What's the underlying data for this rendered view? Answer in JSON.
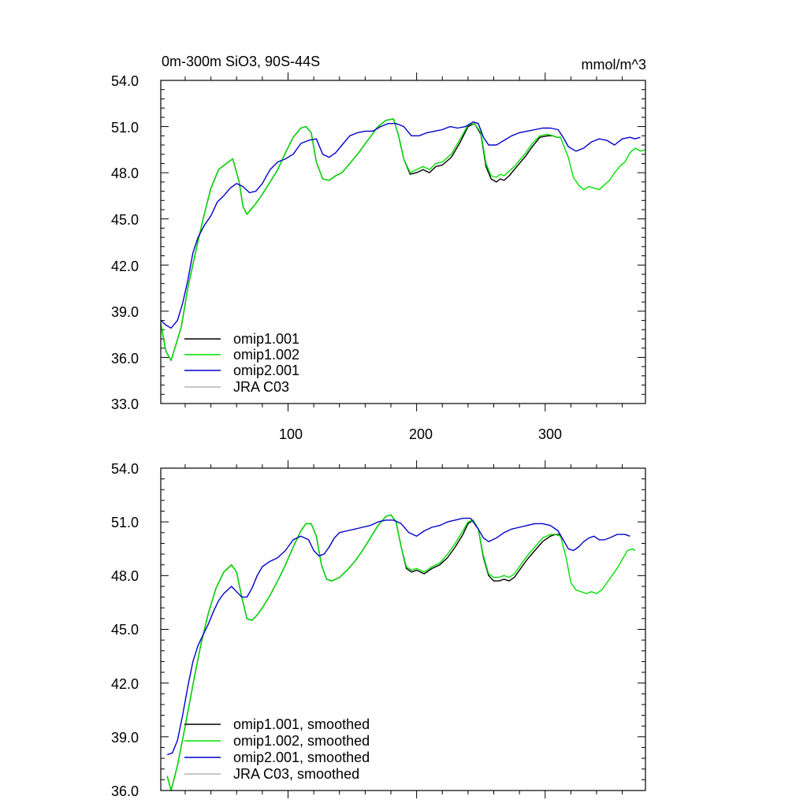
{
  "chart_data": [
    {
      "type": "line",
      "title": "0m-300m SiO3, 90S-44S",
      "units": "mmol/m^3",
      "xlim": [
        1,
        378
      ],
      "ylim": [
        33,
        54
      ],
      "x_ticks": [
        100,
        200,
        300
      ],
      "x_tick_labels": [
        "100",
        "200",
        "300"
      ],
      "y_ticks": [
        33,
        36,
        39,
        42,
        45,
        48,
        51,
        54
      ],
      "y_tick_labels": [
        "33.0",
        "36.0",
        "39.0",
        "42.0",
        "45.0",
        "48.0",
        "51.0",
        "54.0"
      ],
      "legend_position": "bottom-left",
      "series": [
        {
          "name": "omip1.001",
          "color": "#000000",
          "x": [
            1,
            5,
            9,
            12,
            17,
            22,
            28,
            34,
            40,
            46,
            52,
            57,
            62,
            65,
            68,
            71,
            75,
            80,
            86,
            92,
            98,
            104,
            110,
            114,
            118,
            122,
            127,
            132,
            137,
            142,
            148,
            155,
            162,
            170,
            176,
            182,
            186,
            190,
            195,
            200,
            205,
            210,
            215,
            220,
            227,
            234,
            240,
            245,
            250,
            254,
            258,
            262,
            265,
            268,
            272,
            276,
            280,
            285,
            290,
            296,
            302,
            306,
            309,
            312
          ],
          "y": [
            38.2,
            36.4,
            35.8,
            36.6,
            38.0,
            40.5,
            42.8,
            45.0,
            47.0,
            48.2,
            48.6,
            48.9,
            47.4,
            45.8,
            45.3,
            45.6,
            46.0,
            46.6,
            47.4,
            48.2,
            49.3,
            50.3,
            50.9,
            51.0,
            50.6,
            48.7,
            47.6,
            47.5,
            47.8,
            48.0,
            48.6,
            49.3,
            50.1,
            51.0,
            51.4,
            51.5,
            50.4,
            48.9,
            47.9,
            48.0,
            48.2,
            48.0,
            48.4,
            48.5,
            49.0,
            50.0,
            51.0,
            51.2,
            50.5,
            48.4,
            47.6,
            47.4,
            47.6,
            47.5,
            47.8,
            48.2,
            48.6,
            49.1,
            49.7,
            50.3,
            50.4,
            50.4,
            50.3,
            50.3
          ]
        },
        {
          "name": "omip1.002",
          "color": "#00e000",
          "x": [
            1,
            5,
            9,
            12,
            17,
            22,
            28,
            34,
            40,
            46,
            52,
            57,
            62,
            65,
            68,
            71,
            75,
            80,
            86,
            92,
            98,
            104,
            110,
            114,
            118,
            122,
            127,
            132,
            137,
            142,
            148,
            155,
            162,
            170,
            176,
            182,
            186,
            190,
            195,
            200,
            205,
            210,
            215,
            220,
            227,
            234,
            240,
            245,
            250,
            254,
            258,
            262,
            265,
            268,
            272,
            276,
            280,
            285,
            290,
            296,
            302,
            306,
            309,
            312,
            318,
            322,
            326,
            330,
            334,
            338,
            342,
            346,
            350,
            354,
            358,
            362,
            366,
            370,
            374,
            378
          ],
          "y": [
            38.2,
            36.4,
            35.8,
            36.6,
            38.0,
            40.5,
            42.8,
            45.0,
            47.0,
            48.2,
            48.6,
            48.9,
            47.4,
            45.8,
            45.3,
            45.6,
            46.0,
            46.6,
            47.4,
            48.2,
            49.3,
            50.3,
            50.9,
            51.0,
            50.6,
            48.7,
            47.6,
            47.5,
            47.8,
            48.0,
            48.6,
            49.3,
            50.1,
            51.0,
            51.4,
            51.5,
            50.4,
            48.9,
            48.0,
            48.2,
            48.4,
            48.2,
            48.6,
            48.7,
            49.2,
            50.2,
            51.1,
            51.2,
            50.6,
            48.6,
            47.8,
            47.7,
            47.9,
            47.8,
            48.1,
            48.4,
            48.8,
            49.3,
            49.9,
            50.4,
            50.5,
            50.4,
            50.3,
            50.3,
            49.0,
            47.7,
            47.2,
            46.9,
            47.1,
            47.0,
            46.9,
            47.2,
            47.5,
            48.0,
            48.4,
            48.7,
            49.3,
            49.6,
            49.4,
            49.5
          ]
        },
        {
          "name": "omip2.001",
          "color": "#0000cc",
          "x": [
            1,
            5,
            9,
            14,
            18,
            22,
            26,
            30,
            35,
            40,
            45,
            50,
            55,
            60,
            65,
            70,
            75,
            80,
            86,
            92,
            98,
            104,
            110,
            116,
            122,
            127,
            132,
            137,
            142,
            148,
            154,
            160,
            166,
            172,
            178,
            184,
            190,
            196,
            202,
            208,
            214,
            220,
            226,
            232,
            238,
            244,
            248,
            252,
            256,
            262,
            268,
            274,
            280,
            286,
            292,
            298,
            304,
            310,
            314,
            318,
            324,
            330,
            336,
            342,
            348,
            354,
            360,
            366,
            370,
            374
          ],
          "y": [
            38.4,
            38.1,
            37.9,
            38.4,
            39.5,
            41.0,
            42.8,
            43.8,
            44.6,
            45.2,
            46.1,
            46.5,
            47.0,
            47.3,
            47.1,
            46.7,
            46.8,
            47.3,
            48.2,
            48.7,
            48.9,
            49.2,
            49.9,
            50.1,
            50.2,
            49.2,
            49.0,
            49.3,
            49.8,
            50.4,
            50.6,
            50.7,
            50.7,
            51.0,
            51.2,
            51.2,
            51.0,
            50.4,
            50.4,
            50.6,
            50.7,
            50.8,
            51.0,
            50.9,
            51.0,
            51.3,
            51.2,
            50.3,
            49.8,
            49.8,
            50.1,
            50.4,
            50.6,
            50.7,
            50.8,
            50.9,
            50.9,
            50.8,
            50.3,
            49.7,
            49.4,
            49.6,
            50.0,
            50.2,
            50.1,
            49.8,
            50.2,
            50.3,
            50.2,
            50.3
          ]
        },
        {
          "name": "JRA C03",
          "color": "#b4b4b4",
          "x": [],
          "y": []
        }
      ]
    },
    {
      "type": "line",
      "xlim": [
        1,
        378
      ],
      "ylim": [
        36,
        54
      ],
      "x_ticks": [
        100,
        200,
        300
      ],
      "y_ticks": [
        36,
        39,
        42,
        45,
        48,
        51,
        54
      ],
      "y_tick_labels": [
        "36.0",
        "39.0",
        "42.0",
        "45.0",
        "48.0",
        "51.0",
        "54.0"
      ],
      "legend_position": "bottom-left",
      "series": [
        {
          "name": "omip1.001, smoothed",
          "color": "#000000",
          "x": [
            6,
            9,
            14,
            20,
            26,
            32,
            38,
            44,
            50,
            56,
            60,
            64,
            68,
            72,
            76,
            80,
            86,
            92,
            98,
            104,
            110,
            114,
            118,
            122,
            126,
            130,
            134,
            140,
            146,
            152,
            158,
            164,
            170,
            176,
            180,
            184,
            188,
            192,
            196,
            200,
            206,
            212,
            218,
            224,
            230,
            236,
            240,
            244,
            248,
            252,
            256,
            260,
            264,
            268,
            272,
            276,
            280,
            286,
            292,
            298,
            304,
            308,
            312
          ],
          "y": [
            36.8,
            36.0,
            37.4,
            39.6,
            41.9,
            44.1,
            45.9,
            47.3,
            48.2,
            48.6,
            48.2,
            46.8,
            45.6,
            45.5,
            45.8,
            46.2,
            46.9,
            47.7,
            48.6,
            49.6,
            50.5,
            50.9,
            50.9,
            50.2,
            48.6,
            47.8,
            47.7,
            47.9,
            48.3,
            48.8,
            49.4,
            50.1,
            50.8,
            51.3,
            51.4,
            51.0,
            49.6,
            48.4,
            48.2,
            48.3,
            48.1,
            48.4,
            48.6,
            49.0,
            49.6,
            50.3,
            50.9,
            51.1,
            50.6,
            49.0,
            48.0,
            47.7,
            47.7,
            47.8,
            47.7,
            47.9,
            48.3,
            48.9,
            49.4,
            49.9,
            50.2,
            50.3,
            50.3
          ]
        },
        {
          "name": "omip1.002, smoothed",
          "color": "#00e000",
          "x": [
            6,
            9,
            14,
            20,
            26,
            32,
            38,
            44,
            50,
            56,
            60,
            64,
            68,
            72,
            76,
            80,
            86,
            92,
            98,
            104,
            110,
            114,
            118,
            122,
            126,
            130,
            134,
            140,
            146,
            152,
            158,
            164,
            170,
            176,
            180,
            184,
            188,
            192,
            196,
            200,
            206,
            212,
            218,
            224,
            230,
            236,
            240,
            244,
            248,
            252,
            256,
            260,
            264,
            268,
            272,
            276,
            280,
            286,
            292,
            298,
            304,
            308,
            312,
            316,
            320,
            324,
            328,
            332,
            336,
            340,
            344,
            348,
            352,
            356,
            360,
            364,
            368,
            370
          ],
          "y": [
            36.8,
            36.0,
            37.4,
            39.6,
            41.9,
            44.1,
            45.9,
            47.3,
            48.2,
            48.6,
            48.2,
            46.8,
            45.6,
            45.5,
            45.8,
            46.2,
            46.9,
            47.7,
            48.6,
            49.6,
            50.5,
            50.9,
            50.9,
            50.2,
            48.6,
            47.8,
            47.7,
            47.9,
            48.3,
            48.8,
            49.4,
            50.1,
            50.8,
            51.3,
            51.4,
            51.0,
            49.6,
            48.5,
            48.3,
            48.4,
            48.2,
            48.5,
            48.7,
            49.2,
            49.8,
            50.5,
            51.0,
            51.1,
            50.6,
            49.1,
            48.1,
            47.9,
            47.9,
            48.0,
            47.9,
            48.1,
            48.5,
            49.1,
            49.6,
            50.1,
            50.3,
            50.3,
            50.2,
            49.1,
            47.6,
            47.2,
            47.1,
            47.0,
            47.1,
            47.0,
            47.2,
            47.6,
            48.0,
            48.4,
            48.9,
            49.4,
            49.5,
            49.4
          ]
        },
        {
          "name": "omip2.001, smoothed",
          "color": "#0000cc",
          "x": [
            6,
            10,
            14,
            18,
            22,
            26,
            30,
            34,
            38,
            42,
            46,
            50,
            56,
            60,
            64,
            68,
            72,
            76,
            80,
            86,
            92,
            98,
            104,
            110,
            116,
            120,
            124,
            128,
            132,
            136,
            140,
            146,
            152,
            158,
            164,
            170,
            176,
            182,
            188,
            194,
            200,
            206,
            212,
            218,
            224,
            230,
            236,
            242,
            248,
            252,
            256,
            262,
            268,
            274,
            280,
            286,
            292,
            298,
            304,
            310,
            314,
            318,
            322,
            326,
            330,
            334,
            338,
            342,
            346,
            350,
            356,
            362,
            366
          ],
          "y": [
            38.0,
            38.1,
            38.8,
            40.2,
            41.8,
            43.2,
            44.1,
            44.7,
            45.3,
            46.0,
            46.6,
            47.0,
            47.4,
            47.1,
            46.8,
            46.8,
            47.3,
            48.0,
            48.5,
            48.8,
            49.0,
            49.4,
            50.0,
            50.2,
            50.0,
            49.4,
            49.1,
            49.2,
            49.6,
            50.1,
            50.4,
            50.5,
            50.6,
            50.7,
            50.8,
            51.0,
            51.1,
            51.1,
            50.9,
            50.4,
            50.2,
            50.5,
            50.7,
            50.8,
            51.0,
            51.1,
            51.2,
            51.2,
            50.6,
            50.1,
            49.9,
            50.1,
            50.4,
            50.6,
            50.7,
            50.8,
            50.9,
            50.9,
            50.8,
            50.5,
            50.0,
            49.5,
            49.4,
            49.6,
            49.9,
            50.1,
            50.2,
            50.0,
            50.0,
            50.1,
            50.3,
            50.3,
            50.2
          ]
        },
        {
          "name": "JRA C03, smoothed",
          "color": "#b4b4b4",
          "x": [],
          "y": []
        }
      ]
    }
  ]
}
